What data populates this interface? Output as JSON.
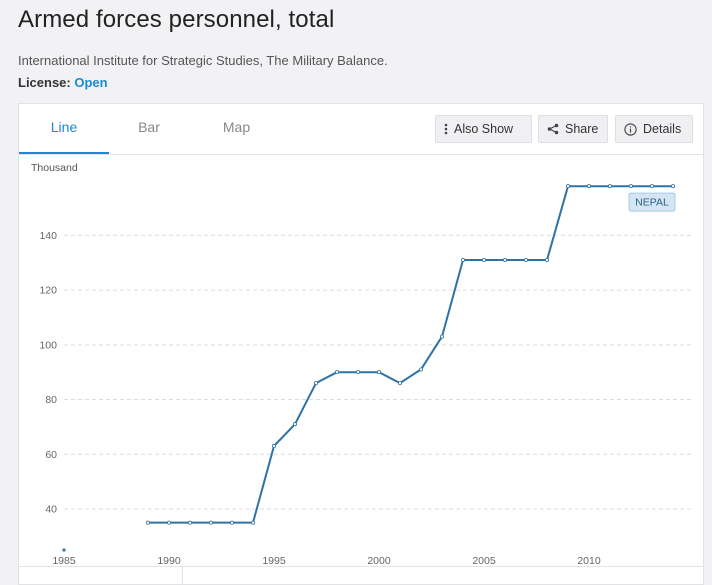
{
  "header": {
    "title": "Armed forces personnel, total",
    "source": "International Institute for Strategic Studies, The Military Balance.",
    "license_label": "License:",
    "license_value": "Open"
  },
  "tabs": [
    {
      "label": "Line",
      "active": true
    },
    {
      "label": "Bar",
      "active": false
    },
    {
      "label": "Map",
      "active": false
    }
  ],
  "toolbar": {
    "also_show_label": "Also Show",
    "share_label": "Share",
    "details_label": "Details"
  },
  "colors": {
    "accent": "#1a8ad4",
    "series": "#2e72a6",
    "series_label_bg": "#d4e6f3"
  },
  "chart_data": {
    "type": "line",
    "ylabel": "Thousand",
    "xlim": [
      1985,
      2015
    ],
    "ylim": [
      25,
      165
    ],
    "x_ticks": [
      1985,
      1990,
      1995,
      2000,
      2005,
      2010
    ],
    "y_ticks": [
      40,
      60,
      80,
      100,
      120,
      140
    ],
    "grid": "horizontal dashed",
    "series": [
      {
        "name": "NEPAL",
        "x": [
          1985,
          1989,
          1990,
          1991,
          1992,
          1993,
          1994,
          1995,
          1996,
          1997,
          1998,
          1999,
          2000,
          2001,
          2002,
          2003,
          2004,
          2005,
          2006,
          2007,
          2008,
          2009,
          2010,
          2011,
          2012,
          2013,
          2014
        ],
        "y": [
          25,
          35,
          35,
          35,
          35,
          35,
          35,
          63,
          71,
          86,
          90,
          90,
          90,
          86,
          91,
          103,
          131,
          131,
          131,
          131,
          131,
          158,
          158,
          158,
          158,
          158,
          158
        ],
        "gap_after_index": 0
      }
    ]
  }
}
